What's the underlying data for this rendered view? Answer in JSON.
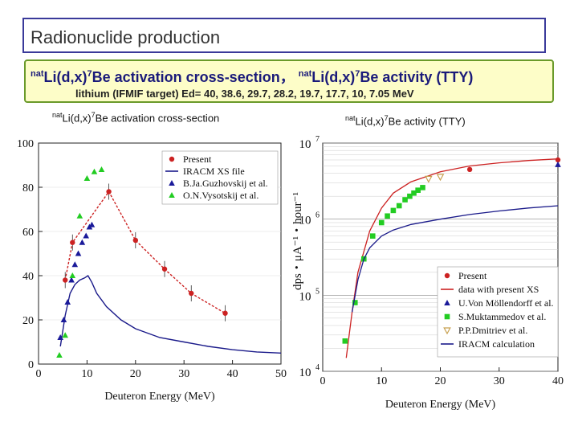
{
  "header": {
    "title": "Radionuclide production",
    "line1_a_sup": "nat",
    "line1_a": "Li(d,x)",
    "line1_a_sup2": "7",
    "line1_a_rest": "Be activation cross-section，",
    "line1_b_sup": "nat",
    "line1_b": "Li(d,x)",
    "line1_b_sup2": "7",
    "line1_b_rest": "Be activity (TTY)",
    "line2": "lithium (IFMIF target)  Ed= 40, 38.6, 29.7, 28.2, 19.7, 17.7, 10, 7.05 MeV"
  },
  "panels": {
    "left_sup": "nat",
    "left_text": "Li(d,x)",
    "left_sup2": "7",
    "left_rest": "Be activation cross-section",
    "right_sup": "nat",
    "right_text": "Li(d,x)",
    "right_sup2": "7",
    "right_rest": "Be activity (TTY)"
  },
  "chart_data": [
    {
      "type": "scatter",
      "xlabel": "Deuteron Energy (MeV)",
      "ylabel": "",
      "xlim": [
        0,
        50
      ],
      "ylim": [
        0,
        100
      ],
      "xticks": [
        "0",
        "10",
        "20",
        "30",
        "40",
        "50"
      ],
      "yticks": [
        "0",
        "20",
        "40",
        "60",
        "80",
        "100"
      ],
      "legend_position": "top-right",
      "series": [
        {
          "name": "Present",
          "marker": "circle",
          "color": "#cc2222",
          "line": "dashed",
          "x": [
            5.5,
            7,
            14.5,
            20,
            26,
            31.5,
            38.5
          ],
          "y": [
            38,
            55,
            78,
            56,
            43,
            32,
            23
          ]
        },
        {
          "name": "IRACM XS file",
          "marker": "none",
          "color": "#1a1a8a",
          "line": "solid",
          "x": [
            4.5,
            5.5,
            6.5,
            7.5,
            8.5,
            9.5,
            10.2,
            11,
            12,
            14,
            17,
            20,
            25,
            30,
            35,
            40,
            45,
            50
          ],
          "y": [
            8,
            22,
            32,
            36,
            38,
            39,
            40,
            37,
            32,
            26,
            20,
            16,
            12,
            10,
            8,
            6.5,
            5.5,
            5
          ]
        },
        {
          "name": "B.Ja.Guzhovskij et al.",
          "marker": "triangle",
          "color": "#1a1a9a",
          "line": "none",
          "x": [
            4.5,
            5.2,
            6,
            6.8,
            7.5,
            8.2,
            9,
            9.8,
            10.5,
            11
          ],
          "y": [
            12,
            20,
            28,
            38,
            45,
            50,
            55,
            58,
            62,
            63
          ]
        },
        {
          "name": "O.N.Vysotskij et al.",
          "marker": "triangle",
          "color": "#22cc22",
          "line": "none",
          "x": [
            4.3,
            5.5,
            7,
            8.5,
            10,
            11.5,
            13
          ],
          "y": [
            4,
            13,
            40,
            67,
            84,
            87,
            88
          ]
        }
      ]
    },
    {
      "type": "scatter",
      "xlabel": "Deuteron Energy (MeV)",
      "ylabel": "dps・μA⁻¹・hour⁻¹",
      "xlim": [
        0,
        40
      ],
      "ylim": [
        10000,
        10000000
      ],
      "yscale": "log",
      "xticks": [
        "0",
        "10",
        "20",
        "30",
        "40"
      ],
      "yticks_exp": [
        "4",
        "5",
        "6",
        "7"
      ],
      "legend_position": "bottom-right",
      "series": [
        {
          "name": "Present",
          "marker": "circle",
          "color": "#cc2222",
          "line": "none",
          "x": [
            25,
            40
          ],
          "y": [
            4500000,
            6000000
          ]
        },
        {
          "name": "data with present XS",
          "marker": "none",
          "color": "#cc2222",
          "line": "solid",
          "x": [
            4,
            5,
            6,
            8,
            10,
            12,
            15,
            20,
            25,
            30,
            35,
            40
          ],
          "y": [
            15000,
            60000,
            200000,
            700000,
            1400000,
            2200000,
            3100000,
            4200000,
            5000000,
            5500000,
            5900000,
            6200000
          ]
        },
        {
          "name": "U.Von Möllendorff et al.",
          "marker": "triangle",
          "color": "#1a1a9a",
          "line": "none",
          "x": [
            40
          ],
          "y": [
            5200000
          ]
        },
        {
          "name": "S.Muktammedov et al.",
          "marker": "square",
          "color": "#22cc22",
          "line": "none",
          "x": [
            3.8,
            5.5,
            7,
            8.5,
            10,
            11,
            12,
            13,
            14,
            14.8,
            15.5,
            16.2,
            17
          ],
          "y": [
            25000,
            80000,
            300000,
            600000,
            900000,
            1100000,
            1300000,
            1500000,
            1800000,
            2000000,
            2200000,
            2400000,
            2600000
          ]
        },
        {
          "name": "P.P.Dmitriev et al.",
          "marker": "triangle-down",
          "color": "#c8a050",
          "line": "none",
          "x": [
            18,
            20
          ],
          "y": [
            3400000,
            3600000
          ]
        },
        {
          "name": "IRACM calculation",
          "marker": "none",
          "color": "#1a1a8a",
          "line": "solid",
          "x": [
            5,
            6,
            7,
            8,
            10,
            12,
            15,
            20,
            25,
            30,
            35,
            40
          ],
          "y": [
            60000,
            160000,
            300000,
            420000,
            600000,
            720000,
            850000,
            1000000,
            1150000,
            1280000,
            1400000,
            1500000
          ]
        }
      ]
    }
  ]
}
